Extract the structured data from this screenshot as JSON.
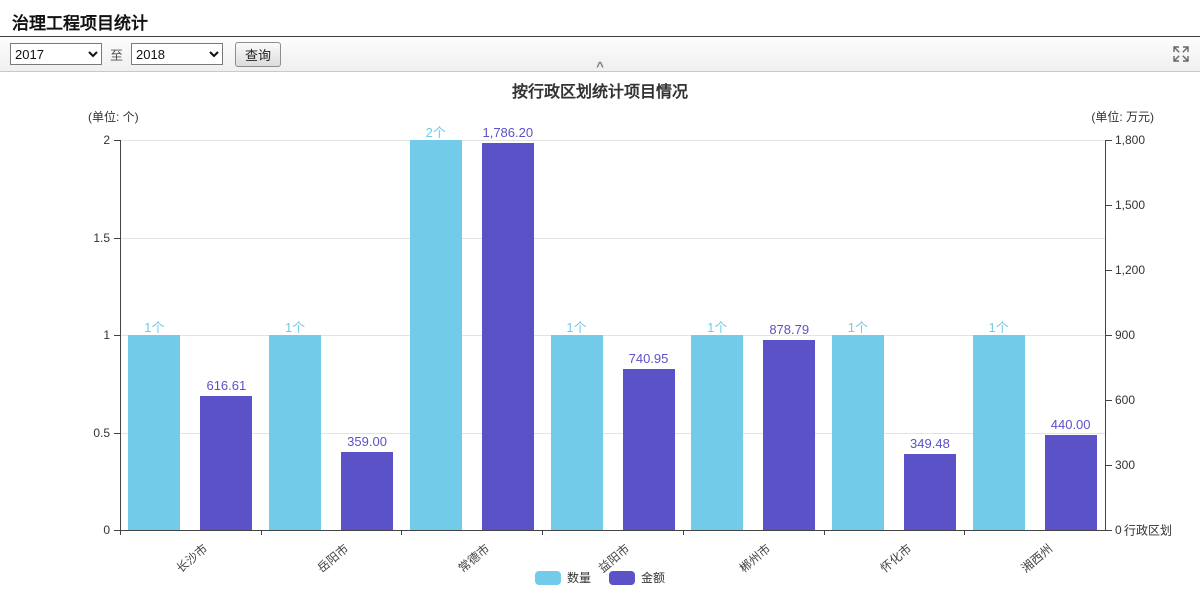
{
  "page": {
    "title": "治理工程项目统计"
  },
  "toolbar": {
    "year_from": "2017",
    "to_label": "至",
    "year_to": "2018",
    "query_button": "查询",
    "icons": {
      "collapse": "^",
      "fullscreen": "expand-arrows"
    }
  },
  "chart_data": {
    "type": "bar",
    "title": "按行政区划统计项目情况",
    "categories": [
      "长沙市",
      "岳阳市",
      "常德市",
      "益阳市",
      "郴州市",
      "怀化市",
      "湘西州"
    ],
    "series": [
      {
        "name": "数量",
        "axis": "left",
        "color": "#72CBE8",
        "values": [
          1,
          1,
          2,
          1,
          1,
          1,
          1
        ],
        "labels": [
          "1个",
          "1个",
          "2个",
          "1个",
          "1个",
          "1个",
          "1个"
        ]
      },
      {
        "name": "金额",
        "axis": "right",
        "color": "#5B52C8",
        "values": [
          616.61,
          359.0,
          1786.2,
          740.95,
          878.79,
          349.48,
          440.0
        ],
        "labels": [
          "616.61",
          "359.00",
          "1,786.20",
          "740.95",
          "878.79",
          "349.48",
          "440.00"
        ]
      }
    ],
    "left_axis": {
      "unit": "(单位: 个)",
      "max": 2,
      "ticks": [
        0,
        0.5,
        1,
        1.5,
        2
      ],
      "labels": [
        "0",
        "0.5",
        "1",
        "1.5",
        "2"
      ]
    },
    "right_axis": {
      "unit": "(单位: 万元)",
      "max": 1800,
      "ticks": [
        0,
        300,
        600,
        900,
        1200,
        1500,
        1800
      ],
      "labels": [
        "0",
        "300",
        "600",
        "900",
        "1,200",
        "1,500",
        "1,800"
      ]
    },
    "x_axis_name": "行政区划",
    "legend": [
      "数量",
      "金额"
    ],
    "grid": true,
    "legend_position": "bottom"
  }
}
